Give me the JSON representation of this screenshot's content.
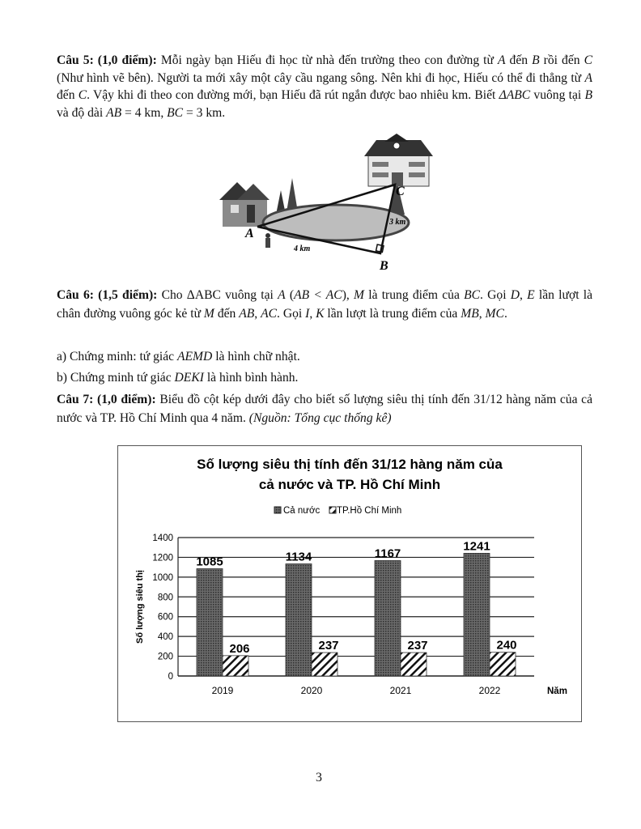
{
  "questions": [
    {
      "id": "q5",
      "runs": [
        {
          "t": "Câu 5: (1,0 điểm):",
          "s": "b"
        },
        {
          "t": " Mỗi ngày bạn Hiếu đi học từ nhà đến trường theo con đường từ ",
          "s": "n"
        },
        {
          "t": "A",
          "s": "i"
        },
        {
          "t": " đến ",
          "s": "n"
        },
        {
          "t": "B",
          "s": "i"
        },
        {
          "t": " rồi đến ",
          "s": "n"
        },
        {
          "t": "C",
          "s": "i"
        },
        {
          "t": " (Như hình vẽ bên). Người ta mới xây một cây cầu ngang sông. Nên khi đi học, Hiếu có thể đi thẳng từ ",
          "s": "n"
        },
        {
          "t": "A",
          "s": "i"
        },
        {
          "t": " đến ",
          "s": "n"
        },
        {
          "t": "C",
          "s": "i"
        },
        {
          "t": ". Vậy khi đi theo con đường mới, bạn Hiếu đã rút ngắn được bao nhiêu km. Biết ",
          "s": "n"
        },
        {
          "t": "ΔABC",
          "s": "i"
        },
        {
          "t": "  vuông tại ",
          "s": "n"
        },
        {
          "t": "B",
          "s": "i"
        },
        {
          "t": "  và độ dài ",
          "s": "n"
        },
        {
          "t": "AB",
          "s": "i"
        },
        {
          "t": " = 4  km, ",
          "s": "n"
        },
        {
          "t": "BC",
          "s": "i"
        },
        {
          "t": " = 3  km.",
          "s": "n"
        }
      ]
    },
    {
      "id": "q6",
      "runs": [
        {
          "t": "Câu 6: (1,5 điểm):",
          "s": "b"
        },
        {
          "t": " Cho ΔABC",
          "s": "n"
        },
        {
          "t": "",
          "s": "i"
        },
        {
          "t": "  vuông tại ",
          "s": "n"
        },
        {
          "t": "A",
          "s": "i"
        },
        {
          "t": " (",
          "s": "n"
        },
        {
          "t": "AB < AC",
          "s": "i"
        },
        {
          "t": "), ",
          "s": "n"
        },
        {
          "t": "M",
          "s": "i"
        },
        {
          "t": "  là trung điểm của ",
          "s": "n"
        },
        {
          "t": "BC",
          "s": "i"
        },
        {
          "t": ". Gọi ",
          "s": "n"
        },
        {
          "t": "D",
          "s": "i"
        },
        {
          "t": ", ",
          "s": "n"
        },
        {
          "t": "E",
          "s": "i"
        },
        {
          "t": " lần lượt là chân đường vuông góc kẻ từ ",
          "s": "n"
        },
        {
          "t": "M",
          "s": "i"
        },
        {
          "t": "  đến ",
          "s": "n"
        },
        {
          "t": "AB",
          "s": "i"
        },
        {
          "t": ", ",
          "s": "n"
        },
        {
          "t": "AC",
          "s": "i"
        },
        {
          "t": ". Gọi ",
          "s": "n"
        },
        {
          "t": "I",
          "s": "i"
        },
        {
          "t": ", ",
          "s": "n"
        },
        {
          "t": "K",
          "s": "i"
        },
        {
          "t": "  lần lượt là trung điểm của ",
          "s": "n"
        },
        {
          "t": "MB",
          "s": "i"
        },
        {
          "t": ", ",
          "s": "n"
        },
        {
          "t": "MC",
          "s": "i"
        },
        {
          "t": ".",
          "s": "n"
        }
      ]
    },
    {
      "id": "q6a",
      "runs": [
        {
          "t": "a) Chứng minh: tứ giác ",
          "s": "n"
        },
        {
          "t": "AEMD",
          "s": "i"
        },
        {
          "t": " là hình chữ nhật.",
          "s": "n"
        }
      ]
    },
    {
      "id": "q6b",
      "runs": [
        {
          "t": "b) Chứng minh tứ giác ",
          "s": "n"
        },
        {
          "t": "DEKI",
          "s": "i"
        },
        {
          "t": " là hình bình hành.",
          "s": "n"
        }
      ]
    },
    {
      "id": "q7",
      "runs": [
        {
          "t": "Câu 7: (1,0 điểm):",
          "s": "b"
        },
        {
          "t": " Biểu đồ cột kép dưới đây cho biết số lượng siêu thị tính đến 31/12 hàng năm của cả nước và TP. Hồ Chí Minh qua 4 năm. ",
          "s": "n"
        },
        {
          "t": "(Nguồn: Tổng cục thống kê)",
          "s": "i"
        }
      ]
    }
  ],
  "figure": {
    "label_a": "A",
    "label_b": "B",
    "label_c": "C",
    "label_ab": "4 km",
    "label_bc": "3 km"
  },
  "chart_data": {
    "type": "bar",
    "title_lines": [
      "Số lượng siêu thị tính đến 31/12 hàng năm của",
      "cả nước và TP. Hồ Chí Minh"
    ],
    "categories": [
      "2019",
      "2020",
      "2021",
      "2022"
    ],
    "series": [
      {
        "name": "Cả nước",
        "values": [
          1085,
          1134,
          1167,
          1241
        ],
        "fill": "dotted-dark"
      },
      {
        "name": "TP.Hồ Chí Minh",
        "values": [
          206,
          237,
          237,
          240
        ],
        "fill": "hatched"
      }
    ],
    "xlabel": "Năm",
    "ylabel": "Số lượng siêu thị",
    "ylim": [
      0,
      1400
    ],
    "yticks": [
      0,
      200,
      400,
      600,
      800,
      1000,
      1200,
      1400
    ],
    "grid": true,
    "legend": "top",
    "data_labels": true
  },
  "page_number": "3"
}
